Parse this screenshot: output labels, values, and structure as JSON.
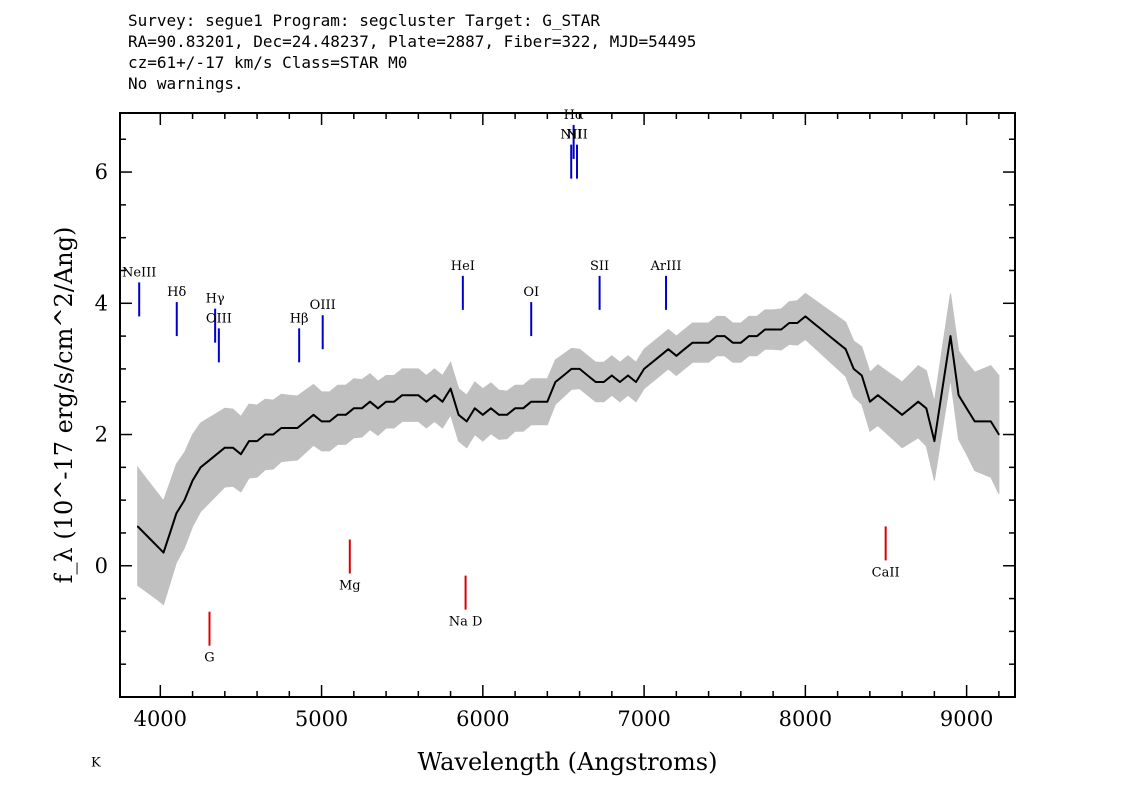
{
  "header": {
    "line1": "Survey: segue1 Program: segcluster Target: G_STAR",
    "line2": "RA=90.83201, Dec=24.48237, Plate=2887, Fiber=322, MJD=54495",
    "line3": "cz=61+/-17 km/s Class=STAR M0",
    "line4": "No warnings."
  },
  "colors": {
    "flux": "#000000",
    "error_band": "#c0c0c0",
    "emission": "#0000cc",
    "absorption": "#dd0000",
    "frame": "#000000"
  },
  "chart_data": {
    "type": "line",
    "title": "",
    "xlabel": "Wavelength (Angstroms)",
    "ylabel": "f_λ (10^-17 erg/s/cm^2/Ang)",
    "xlim": [
      3750,
      9300
    ],
    "ylim": [
      -2.0,
      6.9
    ],
    "x_ticks": [
      4000,
      5000,
      6000,
      7000,
      8000,
      9000
    ],
    "y_ticks": [
      0,
      2,
      4,
      6
    ],
    "grid": false,
    "series": [
      {
        "role": "flux",
        "x": [
          3860,
          3900,
          3940,
          3980,
          4020,
          4060,
          4100,
          4150,
          4200,
          4250,
          4300,
          4350,
          4400,
          4450,
          4500,
          4550,
          4600,
          4650,
          4700,
          4750,
          4800,
          4850,
          4900,
          4950,
          5000,
          5050,
          5100,
          5150,
          5200,
          5250,
          5300,
          5350,
          5400,
          5450,
          5500,
          5550,
          5600,
          5650,
          5700,
          5750,
          5800,
          5850,
          5900,
          5950,
          6000,
          6050,
          6100,
          6150,
          6200,
          6250,
          6300,
          6350,
          6400,
          6450,
          6500,
          6550,
          6600,
          6650,
          6700,
          6750,
          6800,
          6850,
          6900,
          6950,
          7000,
          7050,
          7100,
          7150,
          7200,
          7250,
          7300,
          7350,
          7400,
          7450,
          7500,
          7550,
          7600,
          7650,
          7700,
          7750,
          7800,
          7850,
          7900,
          7950,
          8000,
          8050,
          8100,
          8150,
          8200,
          8250,
          8300,
          8350,
          8400,
          8450,
          8500,
          8550,
          8600,
          8650,
          8700,
          8750,
          8800,
          8850,
          8900,
          8950,
          9000,
          9050,
          9100,
          9150,
          9200
        ],
        "y": [
          0.6,
          0.5,
          0.4,
          0.3,
          0.2,
          0.5,
          0.8,
          1.0,
          1.3,
          1.5,
          1.6,
          1.7,
          1.8,
          1.8,
          1.7,
          1.9,
          1.9,
          2.0,
          2.0,
          2.1,
          2.1,
          2.1,
          2.2,
          2.3,
          2.2,
          2.2,
          2.3,
          2.3,
          2.4,
          2.4,
          2.5,
          2.4,
          2.5,
          2.5,
          2.6,
          2.6,
          2.6,
          2.5,
          2.6,
          2.5,
          2.7,
          2.3,
          2.2,
          2.4,
          2.3,
          2.4,
          2.3,
          2.3,
          2.4,
          2.4,
          2.5,
          2.5,
          2.5,
          2.8,
          2.9,
          3.0,
          3.0,
          2.9,
          2.8,
          2.8,
          2.9,
          2.8,
          2.9,
          2.8,
          3.0,
          3.1,
          3.2,
          3.3,
          3.2,
          3.3,
          3.4,
          3.4,
          3.4,
          3.5,
          3.5,
          3.4,
          3.4,
          3.5,
          3.5,
          3.6,
          3.6,
          3.6,
          3.7,
          3.7,
          3.8,
          3.7,
          3.6,
          3.5,
          3.4,
          3.3,
          3.0,
          2.9,
          2.5,
          2.6,
          2.5,
          2.4,
          2.3,
          2.4,
          2.5,
          2.4,
          1.9,
          2.7,
          3.5,
          2.6,
          2.4,
          2.2,
          2.2,
          2.2,
          2.0
        ]
      },
      {
        "role": "error",
        "x": [
          3860,
          4000,
          4200,
          4400,
          4600,
          4800,
          5000,
          5200,
          5400,
          5600,
          5800,
          6000,
          6200,
          6400,
          6600,
          6800,
          7000,
          7200,
          7400,
          7600,
          7800,
          8000,
          8200,
          8400,
          8600,
          8800,
          9000,
          9200
        ],
        "y": [
          0.9,
          0.8,
          0.7,
          0.6,
          0.55,
          0.5,
          0.45,
          0.45,
          0.4,
          0.4,
          0.4,
          0.4,
          0.35,
          0.35,
          0.3,
          0.3,
          0.3,
          0.3,
          0.3,
          0.3,
          0.3,
          0.35,
          0.4,
          0.45,
          0.5,
          0.6,
          0.7,
          0.9
        ]
      }
    ],
    "features": [
      {
        "x": 3600,
        "y": -2.3,
        "color": "red",
        "text": "K"
      },
      {
        "x": 4305,
        "y": -0.7,
        "color": "red",
        "text": "G"
      },
      {
        "x": 5175,
        "y": 0.4,
        "color": "red",
        "text": "Mg"
      },
      {
        "x": 5893,
        "y": -0.15,
        "color": "red",
        "text": "Na D"
      },
      {
        "x": 8498,
        "y": 0.6,
        "color": "red",
        "text": "CaII"
      },
      {
        "x": 3869,
        "y": 3.8,
        "color": "blue",
        "text": "NeIII"
      },
      {
        "x": 4102,
        "y": 3.5,
        "color": "blue",
        "text": "Hδ"
      },
      {
        "x": 4340,
        "y": 3.4,
        "color": "blue",
        "text": "Hγ"
      },
      {
        "x": 4363,
        "y": 3.1,
        "color": "blue",
        "text": "OIII"
      },
      {
        "x": 4861,
        "y": 3.1,
        "color": "blue",
        "text": "Hβ"
      },
      {
        "x": 5007,
        "y": 3.3,
        "color": "blue",
        "text": "OIII"
      },
      {
        "x": 5876,
        "y": 3.9,
        "color": "blue",
        "text": "HeI"
      },
      {
        "x": 6300,
        "y": 3.5,
        "color": "blue",
        "text": "OI"
      },
      {
        "x": 6548,
        "y": 5.9,
        "color": "blue",
        "text": "NII"
      },
      {
        "x": 6563,
        "y": 6.2,
        "color": "blue",
        "text": "Hα"
      },
      {
        "x": 6584,
        "y": 5.9,
        "color": "blue",
        "text": "NII"
      },
      {
        "x": 6724,
        "y": 3.9,
        "color": "blue",
        "text": "SII"
      },
      {
        "x": 7136,
        "y": 3.9,
        "color": "blue",
        "text": "ArIII"
      }
    ]
  }
}
